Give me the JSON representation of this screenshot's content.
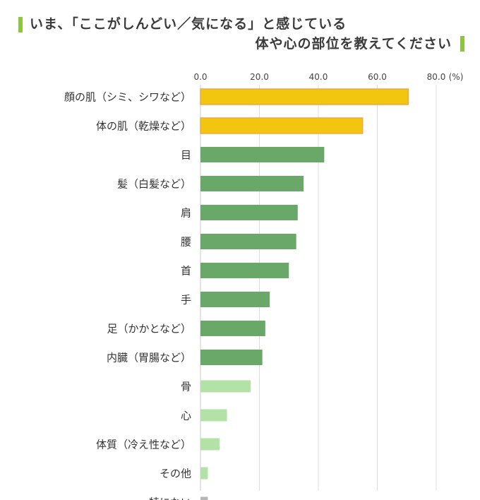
{
  "header": {
    "line1": "いま、「ここがしんどい／気になる」と感じている",
    "line2": "体や心の部位を教えてください",
    "accent_color": "#8cc63f"
  },
  "chart_data": {
    "type": "bar",
    "orientation": "horizontal",
    "title": "",
    "xlabel": "",
    "ylabel": "",
    "unit": "(%)",
    "xlim": [
      0,
      80
    ],
    "x_ticks": [
      "0.0",
      "20.0",
      "40.0",
      "60.0",
      "80.0"
    ],
    "x_tick_values": [
      0,
      20,
      40,
      60,
      80
    ],
    "grid": true,
    "categories": [
      "顔の肌（シミ、シワなど）",
      "体の肌（乾燥など）",
      "目",
      "髪（白髪など）",
      "肩",
      "腰",
      "首",
      "手",
      "足（かかとなど）",
      "内臓（胃腸など）",
      "骨",
      "心",
      "体質（冷え性など）",
      "その他",
      "特にない"
    ],
    "values": [
      70.5,
      55.0,
      42.0,
      35.0,
      33.0,
      32.5,
      30.0,
      23.5,
      22.0,
      21.0,
      17.0,
      9.0,
      6.5,
      2.5,
      2.5
    ],
    "colors": [
      "#f2c60f",
      "#f2c60f",
      "#6aa86a",
      "#6aa86a",
      "#6aa86a",
      "#6aa86a",
      "#6aa86a",
      "#6aa86a",
      "#6aa86a",
      "#6aa86a",
      "#b3e2a6",
      "#b3e2a6",
      "#b3e2a6",
      "#b3e2a6",
      "#b5b5b5"
    ],
    "highlight_border": "#f0a64c"
  }
}
